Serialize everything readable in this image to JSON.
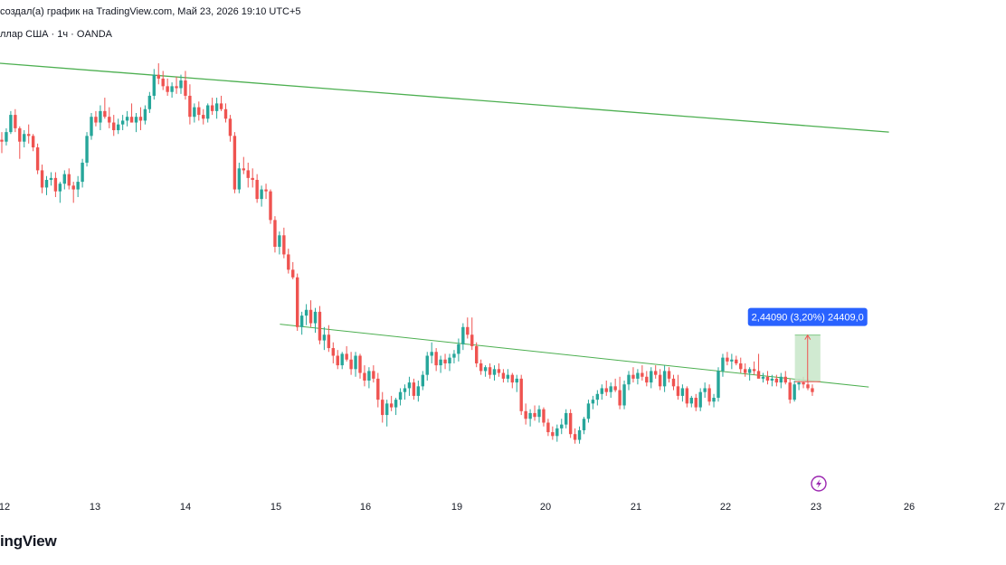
{
  "header": {
    "line1": "создал(а) график на TradingView.com, Май 23, 2026 19:10 UTC+5",
    "line2": "ллар США · 1ч · OANDA"
  },
  "footer": {
    "logo_text": "ingView"
  },
  "measure_label": "2,44090 (3,20%) 24409,0",
  "colors": {
    "up": "#26a69a",
    "down": "#ef5350",
    "trend": "#4caf50",
    "measure_fill": "#c8e6c9",
    "measure_edge": "#ef5350",
    "label_bg": "#2962ff",
    "icon": "#9c27b0"
  },
  "icons": {
    "replay": "lightning-circle-icon"
  },
  "chart_data": {
    "type": "candlestick",
    "x_ticks": [
      "12",
      "13",
      "14",
      "15",
      "16",
      "19",
      "20",
      "21",
      "22",
      "23",
      "26",
      "27"
    ],
    "ohlc": [
      [
        101.6,
        102.0,
        100.9,
        101.5
      ],
      [
        101.5,
        102.2,
        101.3,
        102.0
      ],
      [
        102.0,
        103.1,
        101.9,
        102.9
      ],
      [
        102.9,
        103.2,
        102.0,
        102.2
      ],
      [
        102.2,
        102.3,
        100.6,
        101.5
      ],
      [
        101.5,
        102.1,
        101.2,
        101.9
      ],
      [
        101.9,
        102.4,
        101.4,
        101.8
      ],
      [
        101.8,
        101.9,
        101.0,
        101.2
      ],
      [
        101.2,
        101.4,
        99.8,
        100.0
      ],
      [
        100.0,
        100.3,
        98.8,
        99.1
      ],
      [
        99.1,
        99.7,
        98.7,
        99.5
      ],
      [
        99.5,
        99.9,
        99.2,
        99.6
      ],
      [
        99.6,
        99.9,
        98.6,
        98.9
      ],
      [
        98.9,
        99.4,
        98.3,
        99.3
      ],
      [
        99.3,
        100.0,
        99.0,
        99.8
      ],
      [
        99.8,
        100.1,
        99.0,
        99.2
      ],
      [
        99.2,
        99.4,
        98.3,
        99.0
      ],
      [
        99.0,
        99.7,
        98.6,
        99.4
      ],
      [
        99.4,
        100.6,
        99.1,
        100.4
      ],
      [
        100.4,
        102.0,
        100.2,
        101.8
      ],
      [
        101.8,
        103.0,
        101.6,
        102.8
      ],
      [
        102.8,
        103.1,
        102.3,
        102.5
      ],
      [
        102.5,
        103.4,
        102.1,
        103.1
      ],
      [
        103.1,
        103.8,
        102.7,
        102.8
      ],
      [
        102.8,
        103.3,
        102.2,
        102.5
      ],
      [
        102.5,
        102.9,
        101.8,
        102.1
      ],
      [
        102.1,
        102.7,
        101.9,
        102.4
      ],
      [
        102.4,
        102.9,
        102.1,
        102.6
      ],
      [
        102.6,
        103.1,
        102.3,
        102.8
      ],
      [
        102.8,
        103.5,
        102.5,
        102.5
      ],
      [
        102.5,
        103.0,
        102.0,
        102.8
      ],
      [
        102.8,
        103.3,
        102.1,
        102.6
      ],
      [
        102.6,
        103.4,
        102.4,
        103.2
      ],
      [
        103.2,
        104.1,
        103.0,
        103.9
      ],
      [
        103.9,
        105.3,
        103.7,
        105.0
      ],
      [
        105.0,
        105.6,
        104.5,
        104.8
      ],
      [
        104.8,
        105.2,
        104.2,
        104.4
      ],
      [
        104.4,
        104.8,
        103.9,
        104.1
      ],
      [
        104.1,
        104.6,
        103.8,
        104.4
      ],
      [
        104.4,
        104.9,
        104.0,
        104.3
      ],
      [
        104.3,
        105.0,
        104.0,
        104.7
      ],
      [
        104.7,
        105.2,
        103.7,
        103.9
      ],
      [
        103.9,
        104.5,
        102.4,
        102.8
      ],
      [
        102.8,
        103.5,
        102.5,
        103.3
      ],
      [
        103.3,
        103.6,
        102.6,
        102.9
      ],
      [
        102.9,
        103.2,
        102.4,
        102.7
      ],
      [
        102.7,
        103.5,
        102.5,
        103.4
      ],
      [
        103.4,
        103.8,
        102.9,
        103.1
      ],
      [
        103.1,
        103.8,
        102.7,
        103.5
      ],
      [
        103.5,
        103.9,
        103.1,
        103.2
      ],
      [
        103.2,
        103.5,
        102.5,
        102.7
      ],
      [
        102.7,
        102.9,
        101.5,
        101.8
      ],
      [
        101.8,
        102.0,
        98.8,
        99.0
      ],
      [
        99.0,
        100.4,
        98.8,
        100.1
      ],
      [
        100.1,
        100.7,
        99.8,
        100.0
      ],
      [
        100.0,
        100.4,
        99.1,
        99.6
      ],
      [
        99.6,
        100.1,
        99.1,
        99.5
      ],
      [
        99.5,
        99.8,
        98.3,
        98.5
      ],
      [
        98.5,
        99.2,
        98.1,
        99.0
      ],
      [
        99.0,
        99.3,
        98.5,
        98.9
      ],
      [
        98.9,
        99.0,
        97.2,
        97.4
      ],
      [
        97.4,
        97.6,
        95.7,
        96.0
      ],
      [
        96.0,
        96.8,
        95.6,
        96.6
      ],
      [
        96.6,
        97.0,
        95.4,
        95.6
      ],
      [
        95.6,
        95.9,
        94.6,
        94.8
      ],
      [
        94.8,
        95.2,
        94.3,
        94.4
      ],
      [
        94.4,
        94.6,
        91.6,
        91.8
      ],
      [
        91.8,
        92.6,
        91.4,
        92.4
      ],
      [
        92.4,
        93.0,
        91.9,
        92.7
      ],
      [
        92.7,
        93.2,
        91.8,
        92.0
      ],
      [
        92.0,
        92.8,
        91.5,
        92.6
      ],
      [
        92.6,
        92.9,
        90.9,
        91.1
      ],
      [
        91.1,
        91.8,
        90.6,
        91.4
      ],
      [
        91.4,
        91.9,
        90.5,
        90.7
      ],
      [
        90.7,
        91.0,
        89.9,
        90.3
      ],
      [
        90.3,
        90.6,
        89.6,
        89.8
      ],
      [
        89.8,
        90.5,
        89.6,
        90.4
      ],
      [
        90.4,
        90.8,
        90.0,
        90.1
      ],
      [
        90.1,
        90.5,
        89.3,
        89.6
      ],
      [
        89.6,
        90.5,
        89.2,
        90.3
      ],
      [
        90.3,
        90.4,
        89.1,
        89.4
      ],
      [
        89.4,
        89.8,
        88.7,
        89.0
      ],
      [
        89.0,
        89.7,
        88.6,
        89.5
      ],
      [
        89.5,
        89.8,
        88.9,
        89.1
      ],
      [
        89.1,
        89.4,
        87.6,
        88.0
      ],
      [
        88.0,
        88.4,
        86.8,
        87.2
      ],
      [
        87.2,
        88.0,
        86.6,
        87.8
      ],
      [
        87.8,
        88.2,
        87.4,
        87.6
      ],
      [
        87.6,
        88.1,
        87.2,
        88.0
      ],
      [
        88.0,
        88.6,
        87.7,
        88.4
      ],
      [
        88.4,
        88.8,
        88.0,
        88.6
      ],
      [
        88.6,
        89.2,
        88.2,
        88.9
      ],
      [
        88.9,
        89.1,
        88.0,
        88.2
      ],
      [
        88.2,
        89.0,
        87.9,
        88.7
      ],
      [
        88.7,
        89.5,
        88.5,
        89.3
      ],
      [
        89.3,
        90.5,
        89.0,
        90.3
      ],
      [
        90.3,
        91.0,
        89.9,
        90.5
      ],
      [
        90.5,
        90.7,
        89.5,
        89.8
      ],
      [
        89.8,
        90.3,
        89.4,
        90.1
      ],
      [
        90.1,
        90.4,
        89.6,
        89.9
      ],
      [
        89.9,
        90.4,
        89.5,
        90.2
      ],
      [
        90.2,
        90.6,
        89.9,
        90.4
      ],
      [
        90.4,
        91.2,
        90.0,
        90.9
      ],
      [
        90.9,
        92.0,
        90.6,
        91.8
      ],
      [
        91.8,
        92.3,
        91.2,
        91.4
      ],
      [
        91.4,
        92.3,
        90.6,
        90.8
      ],
      [
        90.8,
        91.0,
        89.7,
        89.9
      ],
      [
        89.9,
        90.1,
        89.3,
        89.5
      ],
      [
        89.5,
        89.8,
        89.2,
        89.7
      ],
      [
        89.7,
        89.9,
        89.1,
        89.3
      ],
      [
        89.3,
        89.8,
        89.0,
        89.6
      ],
      [
        89.6,
        89.9,
        89.2,
        89.4
      ],
      [
        89.4,
        89.6,
        88.9,
        89.1
      ],
      [
        89.1,
        89.6,
        88.9,
        89.3
      ],
      [
        89.3,
        89.4,
        88.6,
        88.9
      ],
      [
        88.9,
        89.3,
        88.4,
        89.1
      ],
      [
        89.1,
        89.3,
        87.2,
        87.4
      ],
      [
        87.4,
        87.8,
        86.7,
        87.0
      ],
      [
        87.0,
        87.5,
        86.6,
        87.3
      ],
      [
        87.3,
        87.7,
        86.9,
        87.1
      ],
      [
        87.1,
        87.7,
        86.8,
        87.5
      ],
      [
        87.5,
        87.6,
        86.6,
        86.8
      ],
      [
        86.8,
        87.0,
        86.1,
        86.3
      ],
      [
        86.3,
        86.6,
        85.9,
        86.1
      ],
      [
        86.1,
        86.7,
        85.8,
        86.5
      ],
      [
        86.5,
        87.0,
        86.2,
        86.7
      ],
      [
        86.7,
        87.5,
        86.5,
        87.3
      ],
      [
        87.3,
        87.5,
        86.0,
        86.2
      ],
      [
        86.2,
        86.5,
        85.7,
        85.9
      ],
      [
        85.9,
        86.6,
        85.7,
        86.4
      ],
      [
        86.4,
        87.1,
        86.2,
        87.0
      ],
      [
        87.0,
        88.0,
        86.8,
        87.8
      ],
      [
        87.8,
        88.2,
        87.5,
        88.0
      ],
      [
        88.0,
        88.5,
        87.7,
        88.3
      ],
      [
        88.3,
        88.8,
        88.0,
        88.6
      ],
      [
        88.6,
        89.0,
        88.2,
        88.4
      ],
      [
        88.4,
        88.9,
        88.1,
        88.7
      ],
      [
        88.7,
        89.1,
        88.4,
        88.5
      ],
      [
        88.5,
        89.2,
        87.5,
        87.7
      ],
      [
        87.7,
        89.0,
        87.5,
        88.8
      ],
      [
        88.8,
        89.5,
        88.5,
        89.3
      ],
      [
        89.3,
        89.7,
        88.9,
        89.1
      ],
      [
        89.1,
        89.6,
        88.8,
        89.4
      ],
      [
        89.4,
        89.8,
        89.0,
        89.2
      ],
      [
        89.2,
        89.5,
        88.7,
        88.9
      ],
      [
        88.9,
        89.7,
        88.6,
        89.5
      ],
      [
        89.5,
        89.8,
        89.1,
        89.3
      ],
      [
        89.3,
        89.6,
        88.5,
        88.7
      ],
      [
        88.7,
        89.8,
        88.4,
        89.5
      ],
      [
        89.5,
        89.7,
        88.9,
        89.1
      ],
      [
        89.1,
        89.3,
        88.5,
        88.7
      ],
      [
        88.7,
        89.3,
        88.0,
        88.2
      ],
      [
        88.2,
        88.8,
        87.9,
        88.6
      ],
      [
        88.6,
        88.7,
        87.6,
        87.8
      ],
      [
        87.8,
        88.2,
        87.6,
        88.1
      ],
      [
        88.1,
        88.3,
        87.4,
        87.6
      ],
      [
        87.6,
        88.6,
        87.4,
        88.4
      ],
      [
        88.4,
        88.9,
        88.1,
        88.6
      ],
      [
        88.6,
        88.8,
        87.7,
        87.9
      ],
      [
        87.9,
        88.3,
        87.6,
        88.1
      ],
      [
        88.1,
        89.7,
        87.9,
        89.5
      ],
      [
        89.5,
        90.4,
        89.2,
        90.2
      ],
      [
        90.2,
        90.5,
        89.8,
        90.0
      ],
      [
        90.0,
        90.4,
        89.6,
        90.1
      ],
      [
        90.1,
        90.3,
        89.8,
        89.9
      ],
      [
        89.9,
        90.2,
        89.4,
        89.6
      ],
      [
        89.6,
        89.9,
        89.2,
        89.4
      ],
      [
        89.4,
        89.7,
        89.0,
        89.6
      ],
      [
        89.6,
        90.0,
        89.3,
        89.5
      ],
      [
        89.5,
        90.4,
        89.2,
        89.1
      ],
      [
        89.1,
        89.4,
        88.9,
        89.2
      ],
      [
        89.2,
        89.5,
        88.8,
        89.0
      ],
      [
        89.0,
        89.3,
        88.7,
        89.1
      ],
      [
        89.1,
        89.3,
        88.7,
        88.9
      ],
      [
        88.9,
        89.4,
        88.6,
        89.2
      ],
      [
        89.2,
        89.5,
        88.8,
        88.9
      ],
      [
        88.9,
        89.1,
        87.8,
        88.0
      ],
      [
        88.0,
        89.0,
        87.9,
        88.8
      ],
      [
        88.8,
        89.1,
        88.5,
        88.9
      ],
      [
        88.9,
        89.2,
        88.6,
        88.8
      ],
      [
        88.8,
        89.1,
        88.5,
        88.6
      ],
      [
        88.6,
        88.8,
        88.2,
        88.4
      ]
    ],
    "trendlines": [
      {
        "x1": 0,
        "y1": 105.6,
        "x2": 198.5,
        "y2": 102.0
      },
      {
        "x1": 62.5,
        "y1": 91.95,
        "x2": 194.0,
        "y2": 88.66
      }
    ],
    "measure": {
      "x1": 177.5,
      "x2": 183.2,
      "y_bottom": 88.94,
      "y_top": 91.38
    }
  }
}
